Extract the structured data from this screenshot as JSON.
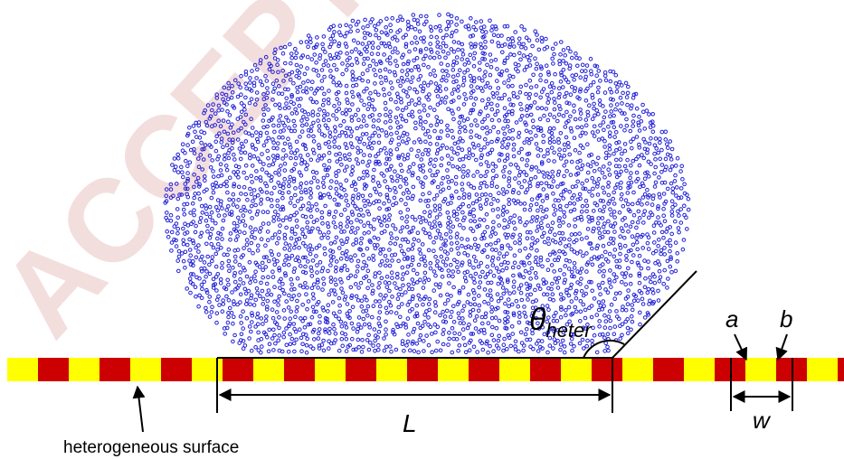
{
  "labels": {
    "contact_angle_symbol": "θ",
    "contact_angle_subscript": "heter",
    "length_label": "L",
    "stripe_a_label": "a",
    "stripe_b_label": "b",
    "period_label": "w",
    "surface_caption": "heterogeneous surface"
  },
  "watermark_text": "ACCEPTED MANUSCRIPT",
  "colors": {
    "particle": "#1f1fd6",
    "stripe_yellow": "#ffff00",
    "stripe_red": "#cc0000",
    "line": "#000000",
    "watermark": "#f3dede"
  },
  "icons": {
    "annotation_arrow": "arrow-icon"
  }
}
